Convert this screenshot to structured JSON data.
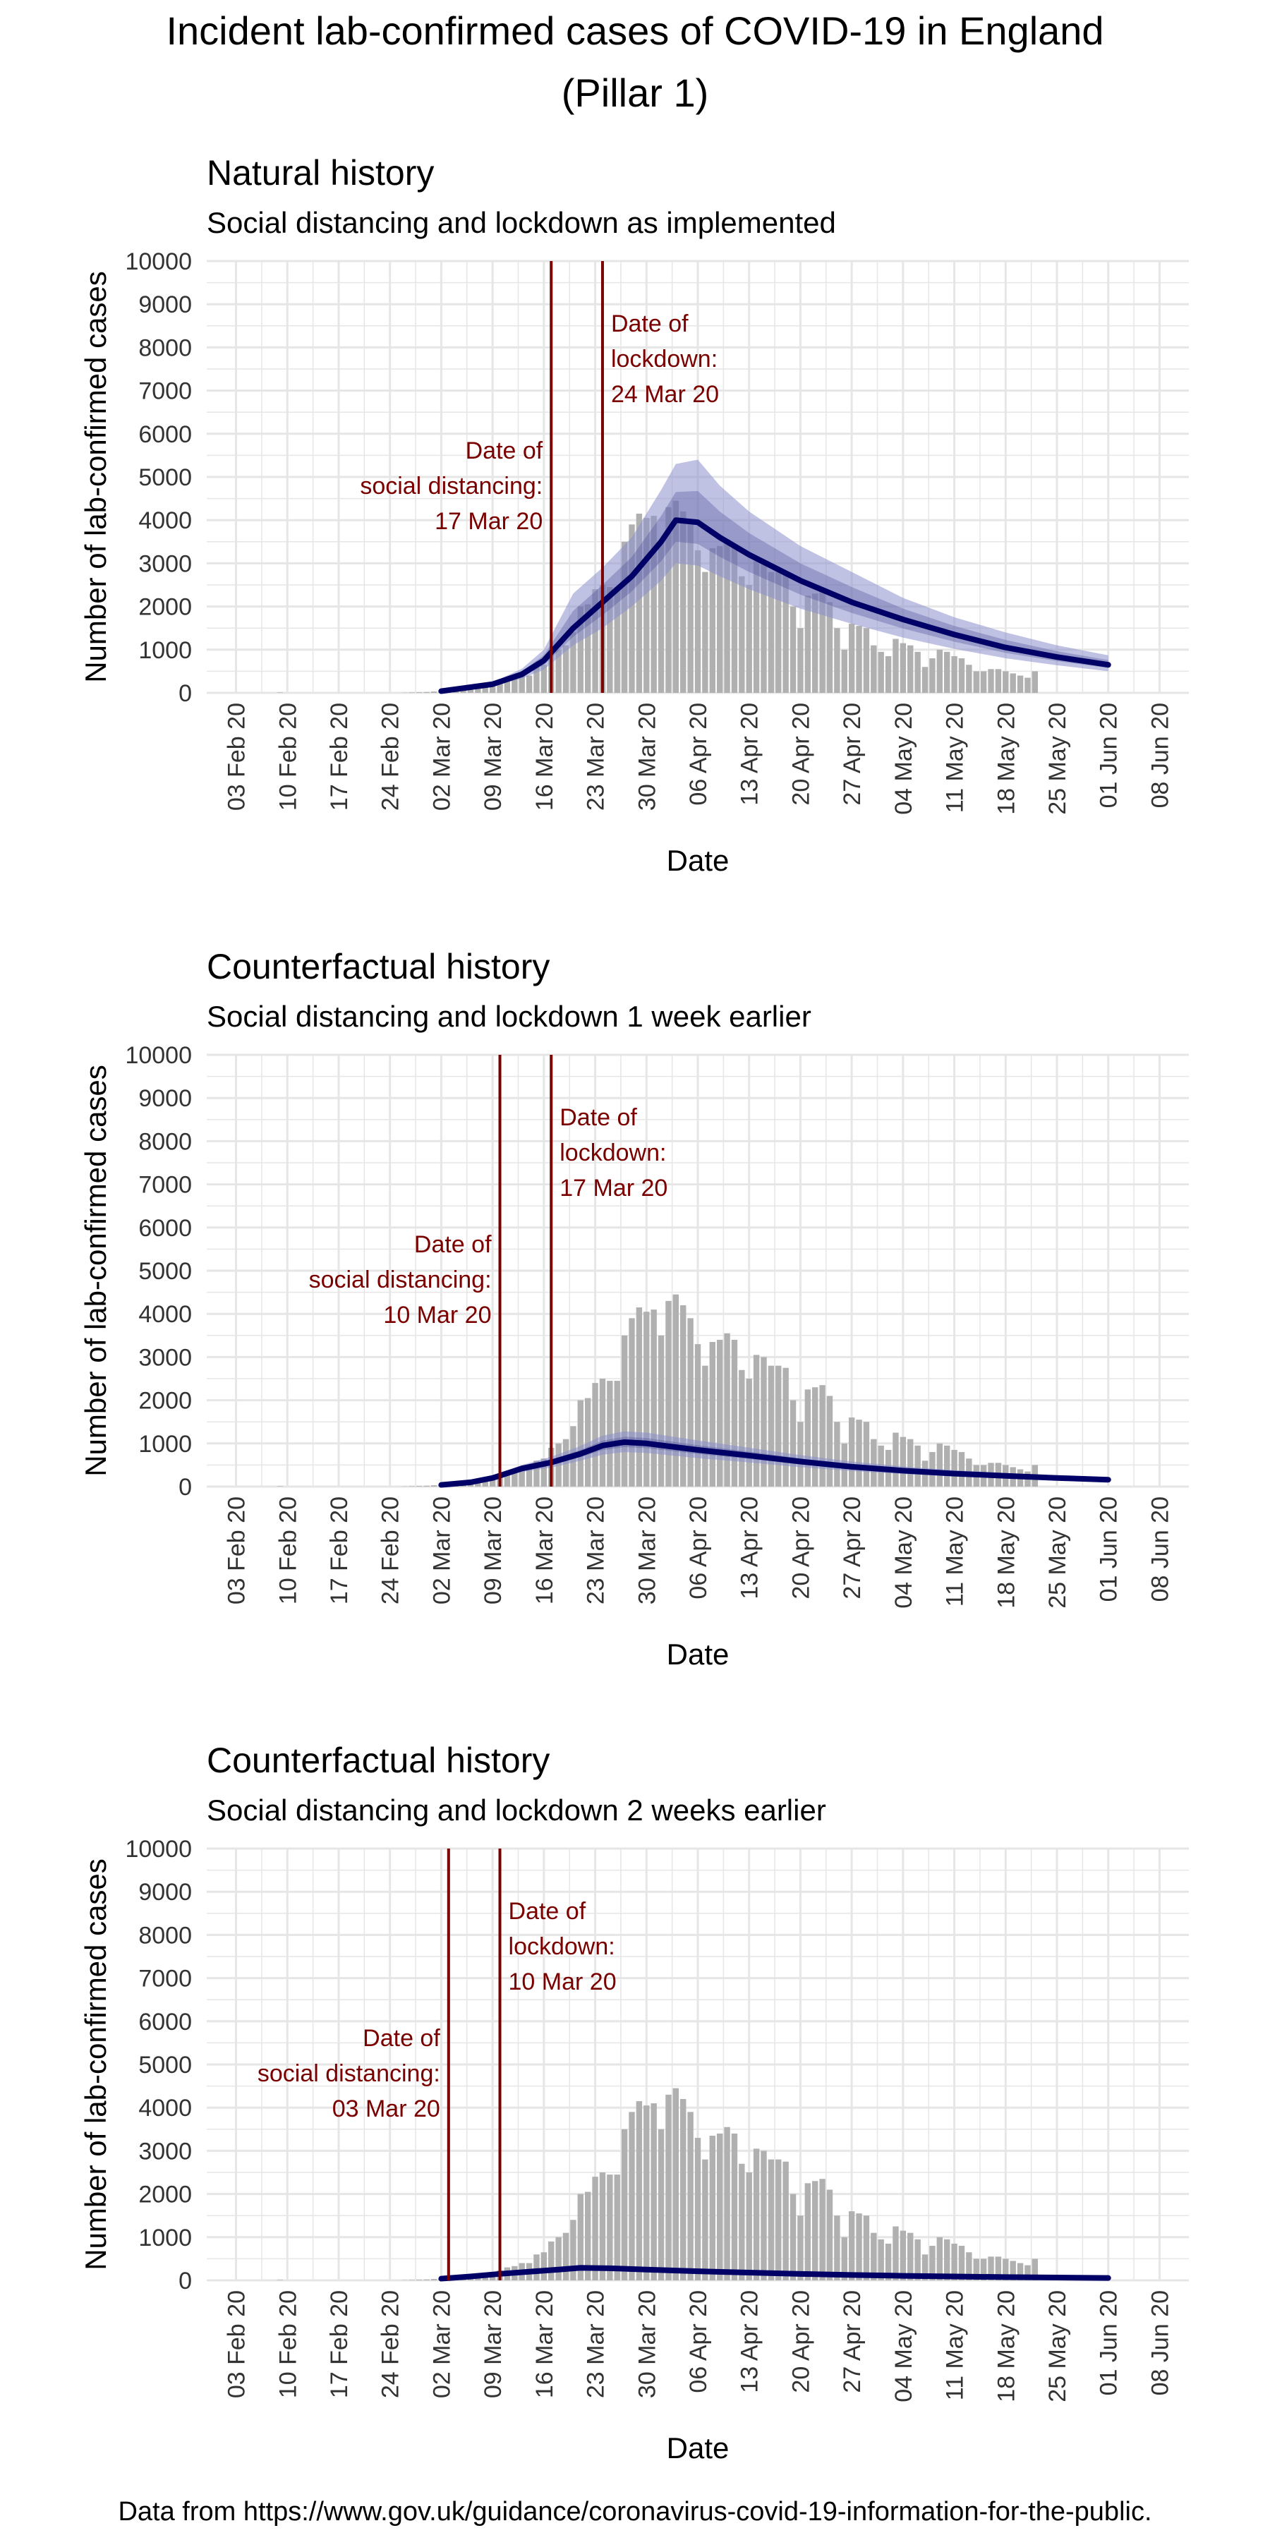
{
  "title_line1": "Incident lab-confirmed cases of COVID-19 in England",
  "title_line2": "(Pillar 1)",
  "source": "Data from https://www.gov.uk/guidance/coronavirus-covid-19-information-for-the-public.",
  "colors": {
    "bars": "#b0b0b0",
    "line": "#000066",
    "band": "#8c8fcc",
    "band_inner": "#4d4f99",
    "vline": "#7a0000",
    "annotation": "#7a0000",
    "grid": "#e6e6e6"
  },
  "chart_data": [
    {
      "type": "bar",
      "title": "Natural history",
      "subtitle": "Social distancing and lockdown as implemented",
      "xlabel": "Date",
      "ylabel": "Number of lab-confirmed cases",
      "ylim": [
        0,
        10000
      ],
      "yticks": [
        "0",
        "1000",
        "2000",
        "3000",
        "4000",
        "5000",
        "6000",
        "7000",
        "8000",
        "9000",
        "10000"
      ],
      "xticks": [
        "03 Feb 20",
        "10 Feb 20",
        "17 Feb 20",
        "24 Feb 20",
        "02 Mar 20",
        "09 Mar 20",
        "16 Mar 20",
        "23 Mar 20",
        "30 Mar 20",
        "06 Apr 20",
        "13 Apr 20",
        "20 Apr 20",
        "27 Apr 20",
        "04 May 20",
        "11 May 20",
        "18 May 20",
        "25 May 20",
        "01 Jun 20",
        "08 Jun 20"
      ],
      "grid": true,
      "annotations": [
        {
          "label": [
            "Date of",
            "social distancing:",
            "17 Mar 20"
          ],
          "date": "17 Mar 20",
          "side": "left"
        },
        {
          "label": [
            "Date of",
            "lockdown:",
            "24 Mar 20"
          ],
          "date": "24 Mar 20",
          "side": "right"
        }
      ],
      "model_series": {
        "name": "",
        "points": [
          [
            "02 Mar 20",
            40
          ],
          [
            "09 Mar 20",
            200
          ],
          [
            "13 Mar 20",
            430
          ],
          [
            "16 Mar 20",
            750
          ],
          [
            "20 Mar 20",
            1500
          ],
          [
            "24 Mar 20",
            2100
          ],
          [
            "28 Mar 20",
            2700
          ],
          [
            "01 Apr 20",
            3500
          ],
          [
            "03 Apr 20",
            4000
          ],
          [
            "06 Apr 20",
            3950
          ],
          [
            "09 Apr 20",
            3600
          ],
          [
            "13 Apr 20",
            3200
          ],
          [
            "20 Apr 20",
            2600
          ],
          [
            "27 Apr 20",
            2100
          ],
          [
            "04 May 20",
            1700
          ],
          [
            "11 May 20",
            1350
          ],
          [
            "18 May 20",
            1050
          ],
          [
            "25 May 20",
            830
          ],
          [
            "01 Jun 20",
            650
          ]
        ],
        "upper": [
          [
            "02 Mar 20",
            45
          ],
          [
            "09 Mar 20",
            240
          ],
          [
            "13 Mar 20",
            560
          ],
          [
            "16 Mar 20",
            1000
          ],
          [
            "20 Mar 20",
            2300
          ],
          [
            "24 Mar 20",
            2900
          ],
          [
            "28 Mar 20",
            3600
          ],
          [
            "01 Apr 20",
            4700
          ],
          [
            "03 Apr 20",
            5300
          ],
          [
            "06 Apr 20",
            5400
          ],
          [
            "09 Apr 20",
            4800
          ],
          [
            "13 Apr 20",
            4200
          ],
          [
            "20 Apr 20",
            3400
          ],
          [
            "27 Apr 20",
            2800
          ],
          [
            "04 May 20",
            2200
          ],
          [
            "11 May 20",
            1750
          ],
          [
            "18 May 20",
            1400
          ],
          [
            "25 May 20",
            1100
          ],
          [
            "01 Jun 20",
            870
          ]
        ],
        "lower": [
          [
            "02 Mar 20",
            35
          ],
          [
            "09 Mar 20",
            160
          ],
          [
            "13 Mar 20",
            330
          ],
          [
            "16 Mar 20",
            540
          ],
          [
            "20 Mar 20",
            1100
          ],
          [
            "24 Mar 20",
            1500
          ],
          [
            "28 Mar 20",
            2000
          ],
          [
            "01 Apr 20",
            2600
          ],
          [
            "03 Apr 20",
            3000
          ],
          [
            "06 Apr 20",
            2950
          ],
          [
            "09 Apr 20",
            2700
          ],
          [
            "13 Apr 20",
            2400
          ],
          [
            "20 Apr 20",
            1950
          ],
          [
            "27 Apr 20",
            1600
          ],
          [
            "04 May 20",
            1280
          ],
          [
            "11 May 20",
            1020
          ],
          [
            "18 May 20",
            800
          ],
          [
            "25 May 20",
            640
          ],
          [
            "01 Jun 20",
            500
          ]
        ]
      }
    },
    {
      "type": "bar",
      "title": "Counterfactual history",
      "subtitle": "Social distancing and lockdown 1 week earlier",
      "xlabel": "Date",
      "ylabel": "Number of lab-confirmed cases",
      "ylim": [
        0,
        10000
      ],
      "yticks": [
        "0",
        "1000",
        "2000",
        "3000",
        "4000",
        "5000",
        "6000",
        "7000",
        "8000",
        "9000",
        "10000"
      ],
      "xticks": [
        "03 Feb 20",
        "10 Feb 20",
        "17 Feb 20",
        "24 Feb 20",
        "02 Mar 20",
        "09 Mar 20",
        "16 Mar 20",
        "23 Mar 20",
        "30 Mar 20",
        "06 Apr 20",
        "13 Apr 20",
        "20 Apr 20",
        "27 Apr 20",
        "04 May 20",
        "11 May 20",
        "18 May 20",
        "25 May 20",
        "01 Jun 20",
        "08 Jun 20"
      ],
      "grid": true,
      "annotations": [
        {
          "label": [
            "Date of",
            "social distancing:",
            "10 Mar 20"
          ],
          "date": "10 Mar 20",
          "side": "left"
        },
        {
          "label": [
            "Date of",
            "lockdown:",
            "17 Mar 20"
          ],
          "date": "17 Mar 20",
          "side": "right"
        }
      ],
      "model_series": {
        "name": "",
        "points": [
          [
            "02 Mar 20",
            40
          ],
          [
            "06 Mar 20",
            100
          ],
          [
            "09 Mar 20",
            200
          ],
          [
            "13 Mar 20",
            420
          ],
          [
            "17 Mar 20",
            560
          ],
          [
            "21 Mar 20",
            760
          ],
          [
            "24 Mar 20",
            950
          ],
          [
            "27 Mar 20",
            1030
          ],
          [
            "30 Mar 20",
            1000
          ],
          [
            "06 Apr 20",
            850
          ],
          [
            "13 Apr 20",
            720
          ],
          [
            "20 Apr 20",
            580
          ],
          [
            "27 Apr 20",
            460
          ],
          [
            "04 May 20",
            370
          ],
          [
            "11 May 20",
            300
          ],
          [
            "18 May 20",
            250
          ],
          [
            "25 May 20",
            200
          ],
          [
            "01 Jun 20",
            160
          ]
        ],
        "upper": [
          [
            "02 Mar 20",
            45
          ],
          [
            "06 Mar 20",
            115
          ],
          [
            "09 Mar 20",
            240
          ],
          [
            "13 Mar 20",
            500
          ],
          [
            "17 Mar 20",
            690
          ],
          [
            "21 Mar 20",
            940
          ],
          [
            "24 Mar 20",
            1180
          ],
          [
            "27 Mar 20",
            1280
          ],
          [
            "30 Mar 20",
            1250
          ],
          [
            "06 Apr 20",
            1070
          ],
          [
            "13 Apr 20",
            900
          ],
          [
            "20 Apr 20",
            730
          ],
          [
            "27 Apr 20",
            580
          ],
          [
            "04 May 20",
            470
          ],
          [
            "11 May 20",
            380
          ],
          [
            "18 May 20",
            315
          ],
          [
            "25 May 20",
            255
          ],
          [
            "01 Jun 20",
            205
          ]
        ],
        "lower": [
          [
            "02 Mar 20",
            35
          ],
          [
            "06 Mar 20",
            85
          ],
          [
            "09 Mar 20",
            165
          ],
          [
            "13 Mar 20",
            340
          ],
          [
            "17 Mar 20",
            440
          ],
          [
            "21 Mar 20",
            600
          ],
          [
            "24 Mar 20",
            740
          ],
          [
            "27 Mar 20",
            800
          ],
          [
            "30 Mar 20",
            780
          ],
          [
            "06 Apr 20",
            660
          ],
          [
            "13 Apr 20",
            560
          ],
          [
            "20 Apr 20",
            450
          ],
          [
            "27 Apr 20",
            360
          ],
          [
            "04 May 20",
            290
          ],
          [
            "11 May 20",
            235
          ],
          [
            "18 May 20",
            195
          ],
          [
            "25 May 20",
            155
          ],
          [
            "01 Jun 20",
            125
          ]
        ]
      }
    },
    {
      "type": "bar",
      "title": "Counterfactual history",
      "subtitle": "Social distancing and lockdown 2 weeks earlier",
      "xlabel": "Date",
      "ylabel": "Number of lab-confirmed cases",
      "ylim": [
        0,
        10000
      ],
      "yticks": [
        "0",
        "1000",
        "2000",
        "3000",
        "4000",
        "5000",
        "6000",
        "7000",
        "8000",
        "9000",
        "10000"
      ],
      "xticks": [
        "03 Feb 20",
        "10 Feb 20",
        "17 Feb 20",
        "24 Feb 20",
        "02 Mar 20",
        "09 Mar 20",
        "16 Mar 20",
        "23 Mar 20",
        "30 Mar 20",
        "06 Apr 20",
        "13 Apr 20",
        "20 Apr 20",
        "27 Apr 20",
        "04 May 20",
        "11 May 20",
        "18 May 20",
        "25 May 20",
        "01 Jun 20",
        "08 Jun 20"
      ],
      "grid": true,
      "annotations": [
        {
          "label": [
            "Date of",
            "social distancing:",
            "03 Mar 20"
          ],
          "date": "03 Mar 20",
          "side": "left"
        },
        {
          "label": [
            "Date of",
            "lockdown:",
            "10 Mar 20"
          ],
          "date": "10 Mar 20",
          "side": "right"
        }
      ],
      "model_series": {
        "name": "",
        "points": [
          [
            "02 Mar 20",
            40
          ],
          [
            "06 Mar 20",
            90
          ],
          [
            "10 Mar 20",
            150
          ],
          [
            "14 Mar 20",
            200
          ],
          [
            "18 Mar 20",
            250
          ],
          [
            "21 Mar 20",
            290
          ],
          [
            "25 Mar 20",
            280
          ],
          [
            "30 Mar 20",
            250
          ],
          [
            "06 Apr 20",
            210
          ],
          [
            "13 Apr 20",
            180
          ],
          [
            "20 Apr 20",
            150
          ],
          [
            "27 Apr 20",
            125
          ],
          [
            "04 May 20",
            105
          ],
          [
            "11 May 20",
            90
          ],
          [
            "18 May 20",
            75
          ],
          [
            "25 May 20",
            65
          ],
          [
            "01 Jun 20",
            55
          ]
        ],
        "upper": [
          [
            "02 Mar 20",
            45
          ],
          [
            "06 Mar 20",
            100
          ],
          [
            "10 Mar 20",
            170
          ],
          [
            "14 Mar 20",
            225
          ],
          [
            "18 Mar 20",
            285
          ],
          [
            "21 Mar 20",
            330
          ],
          [
            "25 Mar 20",
            320
          ],
          [
            "30 Mar 20",
            290
          ],
          [
            "06 Apr 20",
            245
          ],
          [
            "13 Apr 20",
            210
          ],
          [
            "20 Apr 20",
            175
          ],
          [
            "27 Apr 20",
            148
          ],
          [
            "04 May 20",
            125
          ],
          [
            "11 May 20",
            107
          ],
          [
            "18 May 20",
            90
          ],
          [
            "25 May 20",
            78
          ],
          [
            "01 Jun 20",
            66
          ]
        ],
        "lower": [
          [
            "02 Mar 20",
            35
          ],
          [
            "06 Mar 20",
            80
          ],
          [
            "10 Mar 20",
            130
          ],
          [
            "14 Mar 20",
            175
          ],
          [
            "18 Mar 20",
            215
          ],
          [
            "21 Mar 20",
            250
          ],
          [
            "25 Mar 20",
            240
          ],
          [
            "30 Mar 20",
            210
          ],
          [
            "06 Apr 20",
            175
          ],
          [
            "13 Apr 20",
            150
          ],
          [
            "20 Apr 20",
            125
          ],
          [
            "27 Apr 20",
            104
          ],
          [
            "04 May 20",
            87
          ],
          [
            "11 May 20",
            74
          ],
          [
            "18 May 20",
            62
          ],
          [
            "25 May 20",
            53
          ],
          [
            "01 Jun 20",
            45
          ]
        ]
      }
    }
  ],
  "observed_cases": {
    "name": "",
    "start_date": "01 Feb 20",
    "values": [
      0,
      0,
      0,
      0,
      0,
      0,
      0,
      0,
      10,
      0,
      0,
      0,
      0,
      0,
      0,
      0,
      0,
      0,
      0,
      0,
      0,
      0,
      0,
      0,
      0,
      5,
      10,
      15,
      20,
      30,
      35,
      40,
      60,
      60,
      80,
      110,
      140,
      160,
      230,
      300,
      330,
      400,
      400,
      600,
      650,
      900,
      1000,
      1100,
      1400,
      2000,
      2050,
      2400,
      2500,
      2450,
      2450,
      3500,
      3900,
      4150,
      4050,
      4100,
      3500,
      4300,
      4450,
      4200,
      3900,
      3300,
      2800,
      3350,
      3400,
      3550,
      3400,
      2700,
      2500,
      3050,
      3000,
      2800,
      2800,
      2750,
      2000,
      1500,
      2250,
      2300,
      2350,
      2100,
      1500,
      1000,
      1600,
      1550,
      1500,
      1100,
      950,
      850,
      1250,
      1150,
      1100,
      950,
      600,
      800,
      1000,
      950,
      850,
      800,
      650,
      500,
      500,
      550,
      550,
      500,
      450,
      400,
      350,
      500
    ]
  }
}
